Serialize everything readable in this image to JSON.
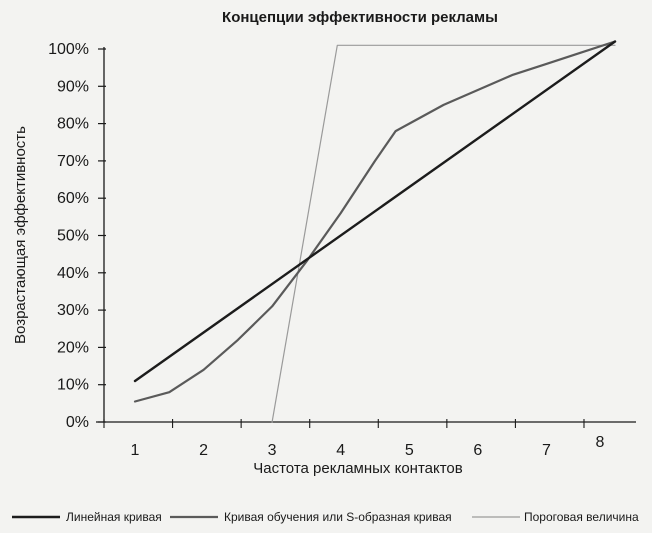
{
  "chart_data": {
    "type": "line",
    "title": "Концепции эффективности рекламы",
    "xlabel": "Частота рекламных контактов",
    "ylabel": "Возрастающая эффективность",
    "xlim": [
      0.5,
      8.2
    ],
    "ylim": [
      0,
      100
    ],
    "x_ticks": [
      "1",
      "2",
      "3",
      "4",
      "5",
      "6",
      "7",
      "8"
    ],
    "y_ticks": [
      "0%",
      "10%",
      "20%",
      "30%",
      "40%",
      "50%",
      "60%",
      "70%",
      "80%",
      "90%",
      "100%"
    ],
    "grid": false,
    "legend_position": "bottom",
    "series": [
      {
        "name": "Линейная кривая",
        "color": "#1c1c1c",
        "points": [
          [
            1.0,
            11
          ],
          [
            8.0,
            102
          ]
        ]
      },
      {
        "name": "Кривая обучения или S-образная кривая",
        "color": "#5a5a5a",
        "points": [
          [
            1.0,
            5.5
          ],
          [
            1.5,
            8
          ],
          [
            2.0,
            14
          ],
          [
            2.5,
            22
          ],
          [
            3.0,
            31
          ],
          [
            3.5,
            43
          ],
          [
            4.0,
            56
          ],
          [
            4.5,
            70
          ],
          [
            4.8,
            78
          ],
          [
            5.0,
            80
          ],
          [
            5.5,
            85
          ],
          [
            6.0,
            89
          ],
          [
            6.5,
            93
          ],
          [
            7.0,
            96
          ],
          [
            7.5,
            99
          ],
          [
            8.0,
            102
          ]
        ]
      },
      {
        "name": "Пороговая величина",
        "color": "#9a9a9a",
        "points": [
          [
            3.0,
            0
          ],
          [
            3.95,
            101
          ],
          [
            8.0,
            101
          ]
        ]
      }
    ]
  }
}
